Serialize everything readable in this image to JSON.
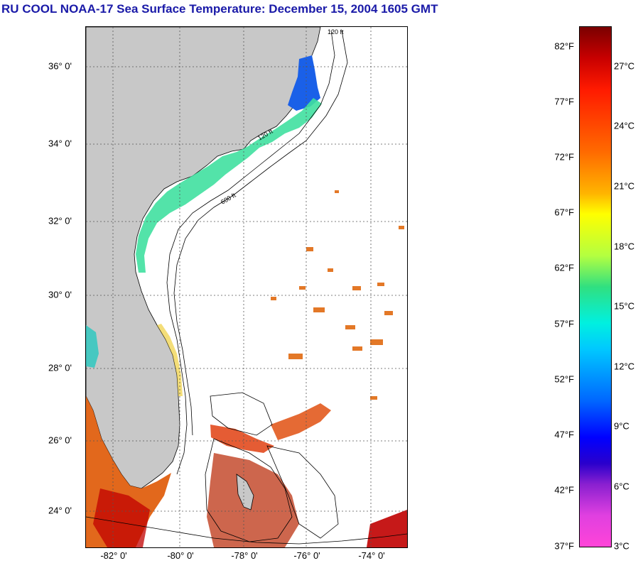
{
  "title": "RU COOL  NOAA-17  Sea Surface Temperature:  December 15, 2004 1605 GMT",
  "map": {
    "lat_labels": [
      "36° 0'",
      "34° 0'",
      "32° 0'",
      "30° 0'",
      "28° 0'",
      "26° 0'",
      "24° 0'"
    ],
    "lon_labels": [
      "-82° 0'",
      "-80° 0'",
      "-78° 0'",
      "-76° 0'",
      "-74° 0'"
    ],
    "isobath_labels": [
      "120 ft",
      "600 ft"
    ],
    "colors": {
      "land": "#c8c8c8",
      "ocean_no_data": "#ffffff",
      "contour": "#000000",
      "grid": "#555555"
    }
  },
  "colorbar": {
    "fahrenheit": [
      "82°F",
      "77°F",
      "72°F",
      "67°F",
      "62°F",
      "57°F",
      "52°F",
      "47°F",
      "42°F",
      "37°F"
    ],
    "celsius": [
      "27°C",
      "24°C",
      "21°C",
      "18°C",
      "15°C",
      "12°C",
      "9°C",
      "6°C",
      "3°C"
    ]
  }
}
